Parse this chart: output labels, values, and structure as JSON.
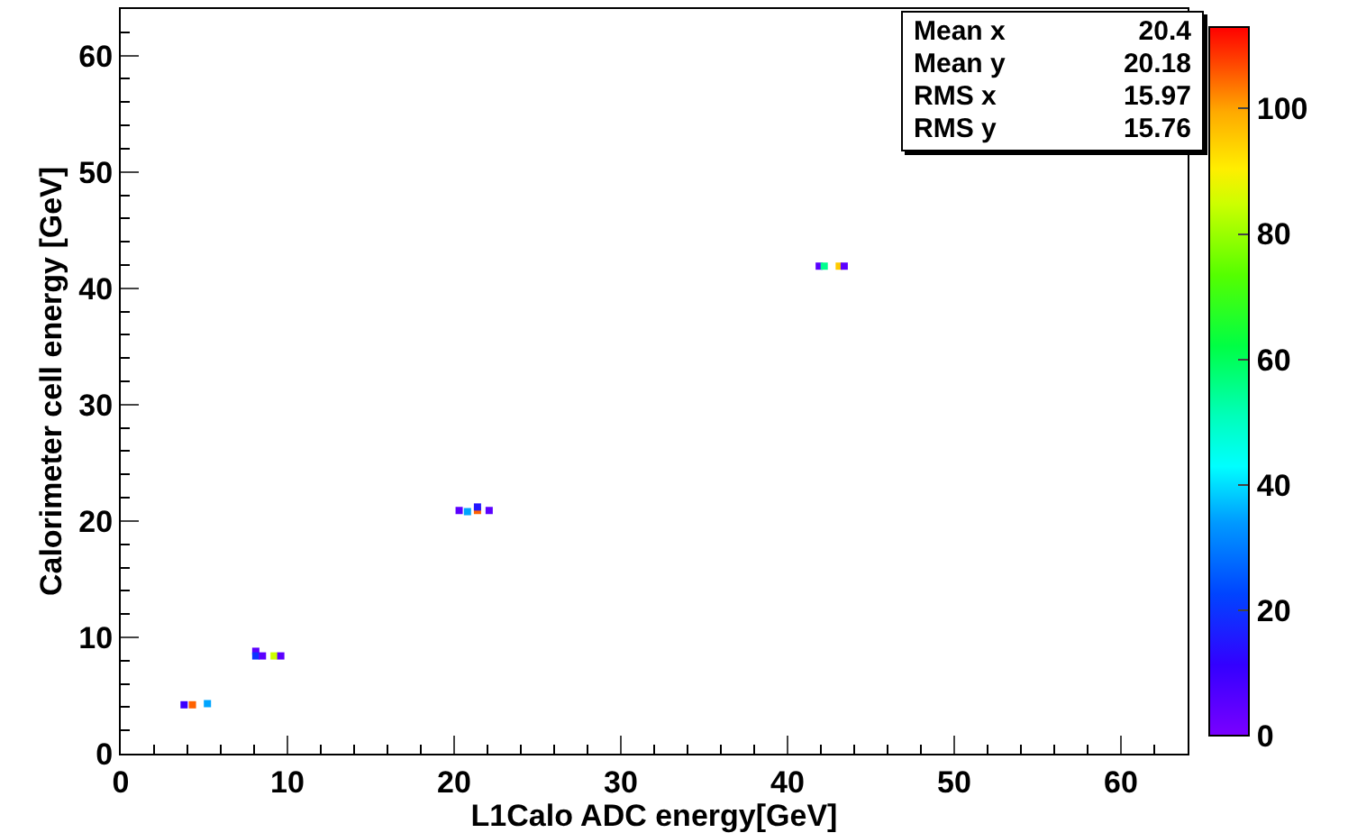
{
  "chart_data": {
    "type": "scatter",
    "xlabel": "L1Calo ADC energy[GeV]",
    "ylabel": "Calorimeter cell energy [GeV]",
    "x": [
      3.8,
      4.3,
      5.2,
      8.1,
      8.1,
      8.5,
      9.2,
      9.6,
      20.3,
      20.8,
      21.4,
      21.4,
      22.1,
      41.9,
      42.2,
      43.1,
      43.4
    ],
    "values": [
      4.2,
      4.2,
      4.3,
      8.8,
      8.4,
      8.4,
      8.4,
      8.4,
      20.9,
      20.8,
      20.9,
      21.2,
      20.9,
      41.9,
      41.9,
      41.9,
      41.9
    ],
    "cvalues": [
      10,
      105,
      35,
      5,
      20,
      5,
      85,
      5,
      5,
      35,
      105,
      15,
      5,
      5,
      55,
      95,
      5
    ],
    "marker": "square",
    "xlim": [
      0,
      64
    ],
    "xticks": [
      0,
      10,
      20,
      30,
      40,
      50,
      60
    ],
    "ylim": [
      0,
      64
    ],
    "yticks": [
      0,
      10,
      20,
      30,
      40,
      50,
      60
    ],
    "clim": [
      0,
      113
    ],
    "cticks": [
      0,
      20,
      40,
      60,
      80,
      100
    ],
    "grid": false,
    "annotations": [
      "Mean x",
      "20.4",
      "Mean y",
      "20.18",
      "RMS x",
      "15.97",
      "RMS y",
      "15.76"
    ]
  }
}
